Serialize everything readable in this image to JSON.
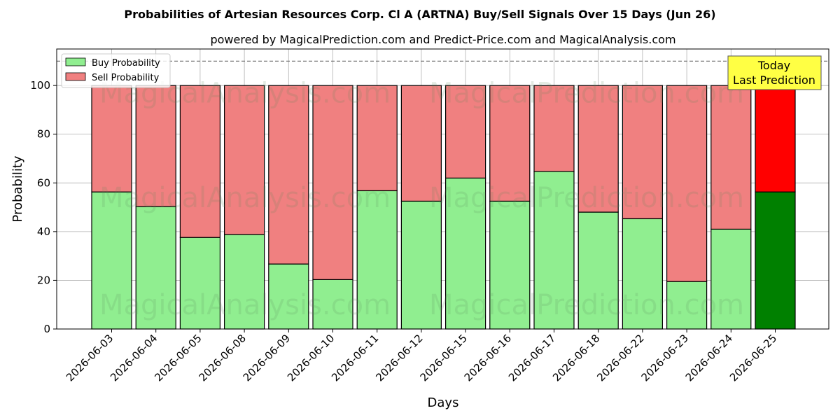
{
  "chart_data": {
    "type": "bar",
    "stacked": true,
    "title": "Probabilities of Artesian Resources Corp. Cl A (ARTNA) Buy/Sell Signals Over 15 Days (Jun 26)",
    "subtitle": "powered by MagicalPrediction.com and Predict-Price.com and MagicalAnalysis.com",
    "xlabel": "Days",
    "ylabel": "Probability",
    "ylim": [
      0,
      115
    ],
    "yticks": [
      0,
      20,
      40,
      60,
      80,
      100
    ],
    "reference_line": 110,
    "grid": true,
    "legend_position": "top-left",
    "categories": [
      "2026-06-03",
      "2026-06-04",
      "2026-06-05",
      "2026-06-08",
      "2026-06-09",
      "2026-06-10",
      "2026-06-11",
      "2026-06-12",
      "2026-06-15",
      "2026-06-16",
      "2026-06-17",
      "2026-06-18",
      "2026-06-22",
      "2026-06-23",
      "2026-06-24",
      "2026-06-25"
    ],
    "series": [
      {
        "name": "Buy Probability",
        "color": "#90ee90",
        "highlight_color": "#008000",
        "values": [
          56.3,
          50.3,
          37.6,
          38.8,
          26.7,
          20.3,
          56.8,
          52.5,
          62.0,
          52.5,
          64.7,
          48.0,
          45.3,
          19.5,
          41.0,
          56.3
        ]
      },
      {
        "name": "Sell Probability",
        "color": "#f08080",
        "highlight_color": "#ff0000",
        "values": [
          43.7,
          49.7,
          62.4,
          61.2,
          73.3,
          79.7,
          43.2,
          47.5,
          38.0,
          47.5,
          35.3,
          52.0,
          54.7,
          80.5,
          59.0,
          43.7
        ]
      }
    ],
    "annotation": {
      "lines": [
        "Today",
        "Last Prediction"
      ],
      "color": "#ffff44"
    },
    "watermarks": [
      "MagicalAnalysis.com",
      "MagicalPrediction.com"
    ]
  }
}
